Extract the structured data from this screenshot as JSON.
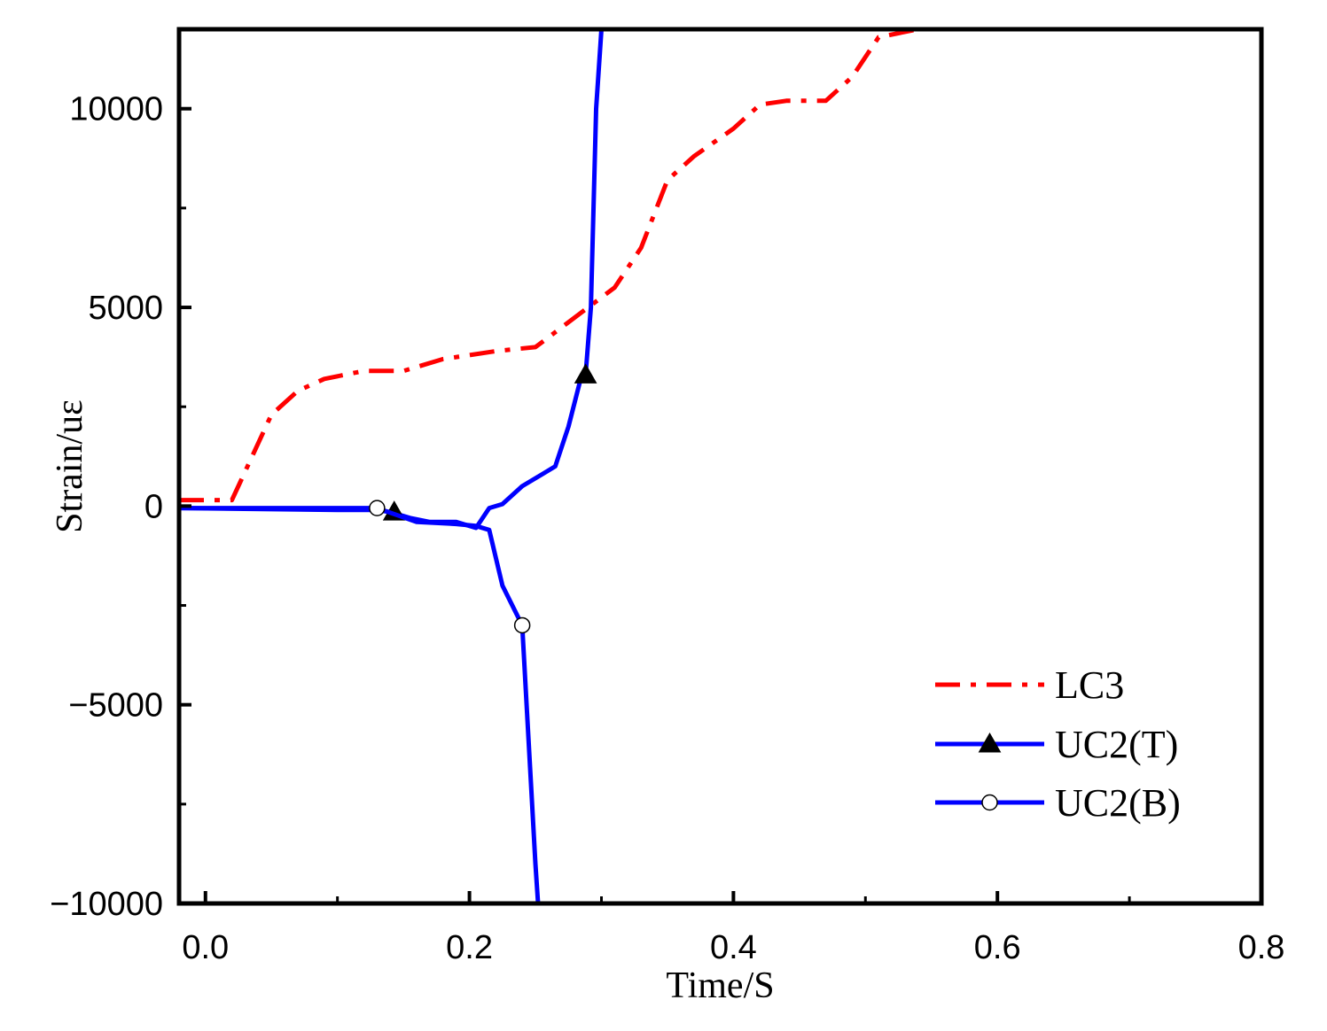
{
  "chart_data": {
    "type": "line",
    "xlabel": "Time/S",
    "ylabel": "Strain/uε",
    "xlim": [
      -0.02,
      0.8
    ],
    "ylim": [
      -10000,
      12000
    ],
    "x_ticks": [
      0.0,
      0.2,
      0.4,
      0.6,
      0.8
    ],
    "x_tick_labels": [
      "0.0",
      "0.2",
      "0.4",
      "0.6",
      "0.8"
    ],
    "y_ticks": [
      -10000,
      -5000,
      0,
      5000,
      10000
    ],
    "y_tick_labels": [
      "−10000",
      "−5000",
      "0",
      "5000",
      "10000"
    ],
    "grid": false,
    "legend_position": "bottom-right",
    "series": [
      {
        "name": "LC3",
        "color": "#ff0000",
        "style": "dash-dot",
        "marker": "none",
        "x": [
          -0.02,
          0.01,
          0.02,
          0.05,
          0.07,
          0.09,
          0.12,
          0.15,
          0.18,
          0.22,
          0.25,
          0.27,
          0.29,
          0.31,
          0.33,
          0.35,
          0.37,
          0.4,
          0.42,
          0.44,
          0.47,
          0.49,
          0.51,
          0.54
        ],
        "y": [
          150,
          150,
          150,
          2300,
          2900,
          3200,
          3400,
          3400,
          3700,
          3900,
          4000,
          4500,
          5000,
          5500,
          6500,
          8200,
          8800,
          9500,
          10100,
          10200,
          10200,
          10800,
          11800,
          12000
        ]
      },
      {
        "name": "UC2(T)",
        "color": "#0000ff",
        "style": "solid",
        "marker": "filled-triangle",
        "marker_color": "#000000",
        "x": [
          -0.02,
          0.1,
          0.13,
          0.14,
          0.155,
          0.17,
          0.19,
          0.205,
          0.215,
          0.225,
          0.24,
          0.255,
          0.265,
          0.275,
          0.285,
          0.288,
          0.292,
          0.296,
          0.3
        ],
        "y": [
          -50,
          -100,
          -100,
          -150,
          -300,
          -400,
          -400,
          -550,
          -50,
          50,
          500,
          800,
          1000,
          2000,
          3300,
          3300,
          5000,
          10000,
          12000
        ],
        "marker_x": [
          0.143,
          0.288
        ],
        "marker_y": [
          -150,
          3300
        ]
      },
      {
        "name": "UC2(B)",
        "color": "#0000ff",
        "style": "solid",
        "marker": "hollow-circle",
        "marker_color": "#ffffff",
        "x": [
          -0.02,
          0.13,
          0.16,
          0.19,
          0.205,
          0.215,
          0.225,
          0.24,
          0.25,
          0.252
        ],
        "y": [
          -50,
          -50,
          -400,
          -450,
          -500,
          -600,
          -2000,
          -3000,
          -9000,
          -10000
        ],
        "marker_x": [
          0.13,
          0.24
        ],
        "marker_y": [
          -50,
          -3000
        ]
      }
    ]
  }
}
